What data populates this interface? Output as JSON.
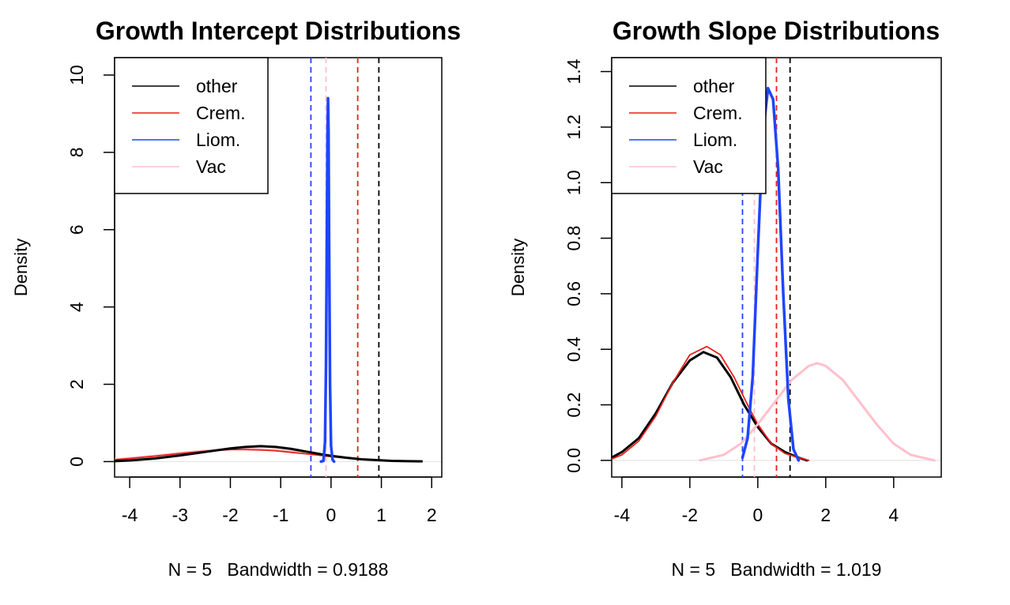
{
  "chart_data": [
    {
      "type": "line",
      "title": "Growth Intercept Distributions",
      "xlabel": "N = 5   Bandwidth = 0.9188",
      "ylabel": "Density",
      "xlim": [
        -4.3,
        2.2
      ],
      "ylim": [
        -0.4,
        10.45
      ],
      "xticks": [
        "-4",
        "-3",
        "-2",
        "-1",
        "0",
        "1",
        "2"
      ],
      "xtick_values": [
        -4,
        -3,
        -2,
        -1,
        0,
        1,
        2
      ],
      "yticks": [
        "0",
        "2",
        "4",
        "6",
        "8",
        "10"
      ],
      "ytick_values": [
        0,
        2,
        4,
        6,
        8,
        10
      ],
      "grid": false,
      "legend": {
        "placement": "top-left",
        "entries": [
          "other",
          "Crem.",
          "Liom.",
          "Vac"
        ]
      },
      "series": [
        {
          "name": "other",
          "color": "#000000",
          "x": [
            -4.3,
            -4.0,
            -3.5,
            -3.0,
            -2.5,
            -2.0,
            -1.7,
            -1.4,
            -1.1,
            -0.8,
            -0.5,
            -0.2,
            0.0,
            0.3,
            0.6,
            0.9,
            1.2,
            1.5,
            1.8
          ],
          "y": [
            0.01,
            0.03,
            0.08,
            0.16,
            0.25,
            0.34,
            0.38,
            0.4,
            0.38,
            0.33,
            0.26,
            0.19,
            0.15,
            0.1,
            0.06,
            0.04,
            0.02,
            0.01,
            0.005
          ]
        },
        {
          "name": "Crem.",
          "color": "#e8201c",
          "x": [
            -4.3,
            -4.0,
            -3.5,
            -3.0,
            -2.5,
            -2.0,
            -1.7,
            -1.4,
            -1.1,
            -0.8,
            -0.5,
            -0.2,
            0.0,
            0.3,
            0.6,
            0.9,
            1.2,
            1.5,
            1.8
          ],
          "y": [
            0.05,
            0.08,
            0.14,
            0.21,
            0.27,
            0.31,
            0.31,
            0.3,
            0.28,
            0.24,
            0.2,
            0.16,
            0.13,
            0.09,
            0.06,
            0.04,
            0.02,
            0.01,
            0.005
          ]
        },
        {
          "name": "Liom.",
          "color": "#1f44ff",
          "x": [
            -0.2,
            -0.15,
            -0.12,
            -0.1,
            -0.08,
            -0.07,
            -0.06,
            -0.05,
            -0.04,
            -0.02,
            0.0,
            0.03,
            0.06
          ],
          "y": [
            0.0,
            0.02,
            0.5,
            2.5,
            6.5,
            8.5,
            9.4,
            8.6,
            6.0,
            2.0,
            0.4,
            0.05,
            0.0
          ]
        },
        {
          "name": "Vac",
          "color": "#ffc0cb",
          "x": [
            -4.3,
            -4.0,
            -3.5,
            -3.0,
            -2.5,
            -2.0,
            -1.7,
            -1.4,
            -1.1,
            -0.8,
            -0.5,
            -0.2
          ],
          "y": [
            0.05,
            0.09,
            0.15,
            0.22,
            0.28,
            0.32,
            0.33,
            0.32,
            0.3,
            0.26,
            0.22,
            0.18
          ]
        }
      ],
      "vlines": [
        {
          "x": -0.4,
          "color": "#1f44ff"
        },
        {
          "x": -0.1,
          "color": "#ffc0cb"
        },
        {
          "x": 0.53,
          "color": "#e8201c"
        },
        {
          "x": 0.95,
          "color": "#000000"
        }
      ]
    },
    {
      "type": "line",
      "title": "Growth Slope Distributions",
      "xlabel": "N = 5   Bandwidth = 1.019",
      "ylabel": "Density",
      "xlim": [
        -4.3,
        5.4
      ],
      "ylim": [
        -0.06,
        1.45
      ],
      "xticks": [
        "-4",
        "-2",
        "0",
        "2",
        "4"
      ],
      "xtick_values": [
        -4,
        -2,
        0,
        2,
        4
      ],
      "yticks": [
        "0.0",
        "0.2",
        "0.4",
        "0.6",
        "0.8",
        "1.0",
        "1.2",
        "1.4"
      ],
      "ytick_values": [
        0.0,
        0.2,
        0.4,
        0.6,
        0.8,
        1.0,
        1.2,
        1.4
      ],
      "grid": false,
      "legend": {
        "placement": "top-left",
        "entries": [
          "other",
          "Crem.",
          "Liom.",
          "Vac"
        ]
      },
      "series": [
        {
          "name": "other",
          "color": "#000000",
          "x": [
            -4.3,
            -4.0,
            -3.5,
            -3.0,
            -2.5,
            -2.0,
            -1.6,
            -1.2,
            -0.8,
            -0.4,
            0.0,
            0.4,
            0.8,
            1.2,
            1.45
          ],
          "y": [
            0.01,
            0.03,
            0.08,
            0.17,
            0.28,
            0.36,
            0.39,
            0.37,
            0.3,
            0.2,
            0.12,
            0.06,
            0.03,
            0.01,
            0.0
          ]
        },
        {
          "name": "Crem.",
          "color": "#e8201c",
          "x": [
            -4.3,
            -4.0,
            -3.5,
            -3.0,
            -2.5,
            -2.0,
            -1.5,
            -1.1,
            -0.7,
            -0.3,
            0.0,
            0.4,
            0.8,
            1.2,
            1.5
          ],
          "y": [
            0.005,
            0.02,
            0.07,
            0.16,
            0.28,
            0.38,
            0.41,
            0.38,
            0.3,
            0.2,
            0.13,
            0.06,
            0.025,
            0.01,
            0.0
          ]
        },
        {
          "name": "Liom.",
          "color": "#1f44ff",
          "x": [
            -0.45,
            -0.3,
            -0.15,
            0.0,
            0.15,
            0.3,
            0.45,
            0.6,
            0.75,
            0.9,
            1.05,
            1.2
          ],
          "y": [
            0.01,
            0.08,
            0.3,
            0.75,
            1.17,
            1.34,
            1.3,
            1.05,
            0.6,
            0.22,
            0.04,
            0.0
          ]
        },
        {
          "name": "Vac",
          "color": "#ffc0cb",
          "x": [
            -1.7,
            -1.0,
            -0.5,
            0.0,
            0.5,
            1.0,
            1.5,
            1.75,
            2.0,
            2.5,
            3.0,
            3.5,
            4.0,
            4.5,
            5.2
          ],
          "y": [
            0.0,
            0.02,
            0.06,
            0.13,
            0.21,
            0.29,
            0.34,
            0.35,
            0.34,
            0.29,
            0.21,
            0.13,
            0.06,
            0.02,
            0.0
          ]
        }
      ],
      "vlines": [
        {
          "x": -0.45,
          "color": "#1f44ff"
        },
        {
          "x": -0.1,
          "color": "#ffc0cb"
        },
        {
          "x": 0.55,
          "color": "#e8201c"
        },
        {
          "x": 0.95,
          "color": "#000000"
        }
      ]
    }
  ]
}
